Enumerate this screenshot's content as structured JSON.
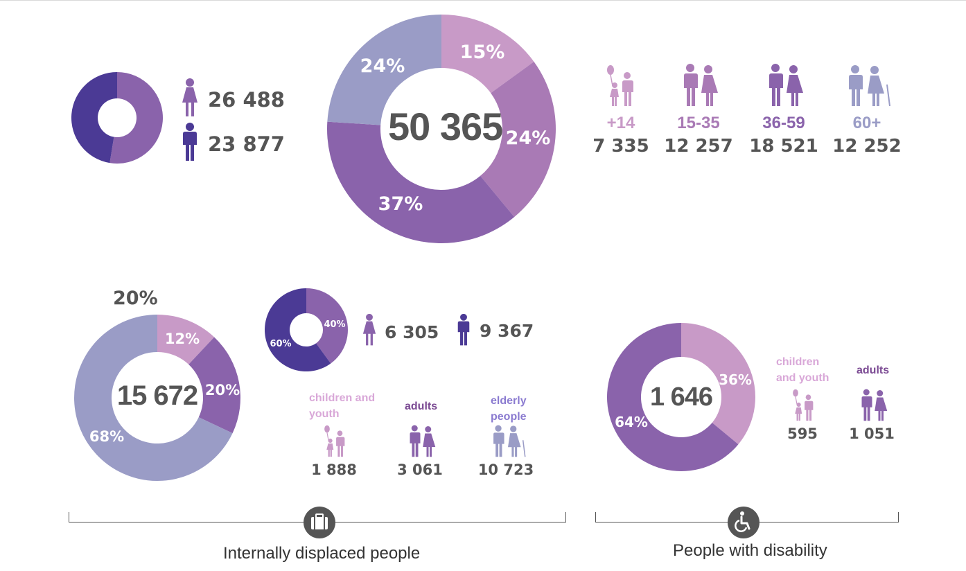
{
  "colors": {
    "c15": "#c89ac7",
    "c1535": "#a97ab5",
    "c3659": "#8a63ab",
    "c60": "#9a9cc6",
    "female": "#8a63ab",
    "male": "#4b3a95",
    "text": "#555555"
  },
  "total": {
    "center_label": "50 365",
    "female_count": "26 488",
    "male_count": "23 877",
    "ages": [
      {
        "label": "+14",
        "count": "7 335",
        "icon": "child-with-balloon-icon",
        "color": "#c89ac7"
      },
      {
        "label": "15-35",
        "count": "12 257",
        "icon": "young-couple-icon",
        "color": "#a97ab5"
      },
      {
        "label": "36-59",
        "count": "18 521",
        "icon": "adult-couple-icon",
        "color": "#8a63ab"
      },
      {
        "label": "60+",
        "count": "12 252",
        "icon": "elderly-couple-icon",
        "color": "#9a9cc6"
      }
    ]
  },
  "idp": {
    "center_label": "15 672",
    "outside_label": "20%",
    "female_count": "6 305",
    "male_count": "9 367",
    "groups": [
      {
        "label": "children and youth",
        "count": "1 888",
        "color": "#c89ac7"
      },
      {
        "label": "adults",
        "count": "3 061",
        "color": "#8a63ab"
      },
      {
        "label": "elderly people",
        "count": "10 723",
        "color": "#9a9cc6"
      }
    ],
    "caption": "Internally displaced people"
  },
  "disability": {
    "center_label": "1 646",
    "groups": [
      {
        "label": "children and youth",
        "count": "595",
        "color": "#c89ac7"
      },
      {
        "label": "adults",
        "count": "1 051",
        "color": "#8a63ab"
      }
    ],
    "caption": "People with disability"
  },
  "chart_data": [
    {
      "type": "pie",
      "categories": [
        "female",
        "male"
      ],
      "values": [
        26488,
        23877
      ],
      "colors": [
        "#8a63ab",
        "#4b3a95"
      ]
    },
    {
      "type": "pie",
      "categories": [
        "+14",
        "15-35",
        "36-59",
        "60+"
      ],
      "values": [
        15,
        24,
        37,
        24
      ],
      "labels": [
        "15%",
        "24%",
        "37%",
        "24%"
      ],
      "colors": [
        "#c89ac7",
        "#a97ab5",
        "#8a63ab",
        "#9a9cc6"
      ],
      "title": "50 365"
    },
    {
      "type": "pie",
      "categories": [
        "children and youth",
        "adults",
        "elderly people"
      ],
      "values": [
        12,
        20,
        68
      ],
      "labels": [
        "12%",
        "20%",
        "68%"
      ],
      "colors": [
        "#c89ac7",
        "#8a63ab",
        "#9a9cc6"
      ],
      "title": "15 672"
    },
    {
      "type": "pie",
      "categories": [
        "female",
        "male"
      ],
      "values": [
        40,
        60
      ],
      "labels": [
        "40%",
        "60%"
      ],
      "colors": [
        "#8a63ab",
        "#4b3a95"
      ]
    },
    {
      "type": "pie",
      "categories": [
        "children and youth",
        "adults"
      ],
      "values": [
        36,
        64
      ],
      "labels": [
        "36%",
        "64%"
      ],
      "colors": [
        "#c89ac7",
        "#8a63ab"
      ],
      "title": "1 646"
    }
  ]
}
